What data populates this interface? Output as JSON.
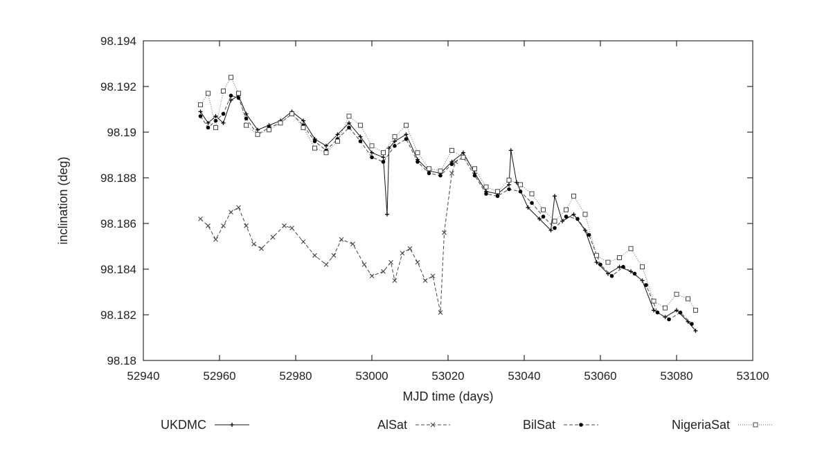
{
  "chart_data": {
    "type": "line",
    "title": "",
    "xlabel": "MJD time (days)",
    "ylabel": "inclination (deg)",
    "xlim": [
      52940,
      53100
    ],
    "ylim": [
      98.18,
      98.194
    ],
    "x_ticks": [
      52940,
      52960,
      52980,
      53000,
      53020,
      53040,
      53060,
      53080,
      53100
    ],
    "y_ticks": [
      "98.18",
      "98.182",
      "98.184",
      "98.186",
      "98.188",
      "98.19",
      "98.192",
      "98.194"
    ],
    "grid": false,
    "legend_position": "bottom",
    "series": [
      {
        "name": "UKDMC",
        "marker": "plus",
        "dash": "solid",
        "x": [
          52955,
          52957,
          52959,
          52961,
          52963,
          52965,
          52967,
          52970,
          52973,
          52976,
          52979,
          52982,
          52985,
          52988,
          52991,
          52994,
          52997,
          53000,
          53003,
          53004,
          53004.5,
          53006,
          53009,
          53012,
          53015,
          53018,
          53021,
          53024,
          53027,
          53030,
          53033,
          53036,
          53036.5,
          53038,
          53041,
          53044,
          53047,
          53048,
          53050,
          53053,
          53056,
          53059,
          53062,
          53065,
          53068,
          53071,
          53074,
          53077,
          53080,
          53083,
          53085
        ],
        "y": [
          98.1909,
          98.1904,
          98.1907,
          98.1904,
          98.1914,
          98.1916,
          98.1908,
          98.1901,
          98.1903,
          98.1905,
          98.1909,
          98.1905,
          98.1897,
          98.1894,
          98.1899,
          98.1904,
          98.1898,
          98.1891,
          98.1889,
          98.1864,
          98.1893,
          98.1896,
          98.1899,
          98.1888,
          98.1883,
          98.1882,
          98.1887,
          98.1891,
          98.1882,
          98.1874,
          98.1873,
          98.1877,
          98.1892,
          98.1878,
          98.1867,
          98.1862,
          98.1857,
          98.1872,
          98.1861,
          98.1864,
          98.1857,
          98.1843,
          98.1838,
          98.1841,
          98.1839,
          98.1835,
          98.1822,
          98.1819,
          98.1822,
          98.1817,
          98.1813
        ]
      },
      {
        "name": "AlSat",
        "marker": "x",
        "dash": "dashed",
        "x": [
          52955,
          52957,
          52959,
          52961,
          52963,
          52965,
          52967,
          52969,
          52971,
          52974,
          52977,
          52979,
          52982,
          52985,
          52988,
          52990,
          52992,
          52995,
          52998,
          53000,
          53003,
          53005,
          53006,
          53008,
          53010,
          53012,
          53014,
          53016,
          53018,
          53019,
          53021,
          53022
        ],
        "y": [
          98.1862,
          98.1859,
          98.1853,
          98.1859,
          98.1865,
          98.1867,
          98.1859,
          98.1851,
          98.1849,
          98.1854,
          98.1859,
          98.1858,
          98.1852,
          98.1846,
          98.1842,
          98.1846,
          98.1853,
          98.1851,
          98.1842,
          98.1837,
          98.1839,
          98.1843,
          98.1835,
          98.1847,
          98.1849,
          98.1843,
          98.1835,
          98.1837,
          98.1821,
          98.1856,
          98.1882,
          98.1887
        ]
      },
      {
        "name": "BilSat",
        "marker": "dot",
        "dash": "dashed",
        "x": [
          52955,
          52957,
          52959,
          52961,
          52963,
          52965,
          52967,
          52970,
          52973,
          52976,
          52979,
          52982,
          52985,
          52988,
          52991,
          52994,
          52997,
          53000,
          53003,
          53006,
          53009,
          53012,
          53015,
          53018,
          53021,
          53024,
          53027,
          53030,
          53033,
          53036,
          53039,
          53042,
          53045,
          53048,
          53051,
          53054,
          53057,
          53060,
          53063,
          53066,
          53069,
          53072,
          53075,
          53078,
          53081,
          53084
        ],
        "y": [
          98.1907,
          98.1902,
          98.1905,
          98.1908,
          98.1916,
          98.1915,
          98.1906,
          98.1899,
          98.1902,
          98.1904,
          98.1908,
          98.1903,
          98.1896,
          98.1892,
          98.1897,
          98.1902,
          98.1896,
          98.1889,
          98.1887,
          98.1894,
          98.1897,
          98.1887,
          98.1882,
          98.1881,
          98.1886,
          98.1889,
          98.1881,
          98.1873,
          98.1872,
          98.1875,
          98.1874,
          98.1869,
          98.1863,
          98.1858,
          98.1863,
          98.1862,
          98.1855,
          98.1842,
          98.1837,
          98.1841,
          98.1838,
          98.1833,
          98.1821,
          98.1818,
          98.1821,
          98.1816
        ]
      },
      {
        "name": "NigeriaSat",
        "marker": "square",
        "dash": "dotted",
        "x": [
          52955,
          52957,
          52959,
          52961,
          52963,
          52965,
          52967,
          52970,
          52973,
          52976,
          52979,
          52982,
          52985,
          52988,
          52991,
          52994,
          52997,
          53000,
          53003,
          53006,
          53009,
          53012,
          53015,
          53018,
          53021,
          53024,
          53027,
          53030,
          53033,
          53036,
          53039,
          53042,
          53045,
          53048,
          53051,
          53053,
          53056,
          53059,
          53062,
          53065,
          53068,
          53071,
          53074,
          53077,
          53080,
          53083,
          53085
        ],
        "y": [
          98.1912,
          98.1917,
          98.1902,
          98.1918,
          98.1924,
          98.1917,
          98.1903,
          98.1899,
          98.1901,
          98.1904,
          98.1908,
          98.1902,
          98.1893,
          98.1891,
          98.1896,
          98.1907,
          98.1903,
          98.1894,
          98.1891,
          98.1898,
          98.1903,
          98.1891,
          98.1884,
          98.1883,
          98.1892,
          98.1889,
          98.1884,
          98.1876,
          98.1874,
          98.1879,
          98.1877,
          98.1873,
          98.1866,
          98.1861,
          98.1866,
          98.1872,
          98.1864,
          98.1846,
          98.1843,
          98.1845,
          98.1849,
          98.1841,
          98.1826,
          98.1823,
          98.1829,
          98.1827,
          98.1822
        ]
      }
    ]
  }
}
